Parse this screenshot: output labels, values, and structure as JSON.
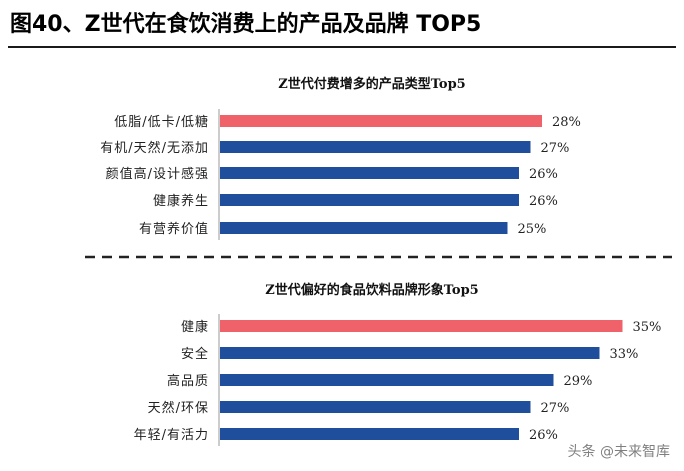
{
  "figure_title": "图40、Z世代在食饮消费上的产品及品牌 TOP5",
  "watermark": "头条 @未来智库",
  "colors": {
    "highlight": "#f0626a",
    "bar": "#1f4f9c"
  },
  "chart_data": [
    {
      "type": "bar",
      "orientation": "horizontal",
      "title": "Z世代付费增多的产品类型Top5",
      "categories": [
        "低脂/低卡/低糖",
        "有机/天然/无添加",
        "颜值高/设计感强",
        "健康养生",
        "有营养价值"
      ],
      "values": [
        28,
        27,
        26,
        26,
        25
      ],
      "labels": [
        "28%",
        "27%",
        "26%",
        "26%",
        "25%"
      ],
      "unit": "%",
      "highlight_index": 0
    },
    {
      "type": "bar",
      "orientation": "horizontal",
      "title": "Z世代偏好的食品饮料品牌形象Top5",
      "categories": [
        "健康",
        "安全",
        "高品质",
        "天然/环保",
        "年轻/有活力"
      ],
      "values": [
        35,
        33,
        29,
        27,
        26
      ],
      "labels": [
        "35%",
        "33%",
        "29%",
        "27%",
        "26%"
      ],
      "unit": "%",
      "highlight_index": 0
    }
  ]
}
